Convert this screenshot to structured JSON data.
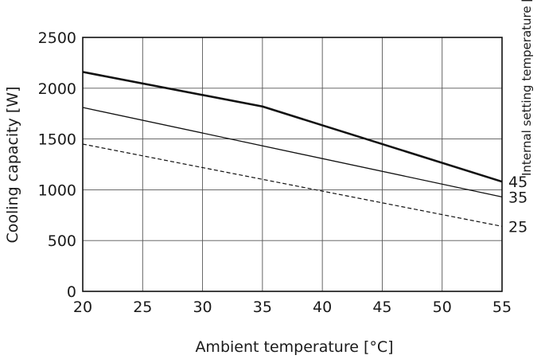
{
  "chart_data": {
    "type": "line",
    "title": "",
    "xlabel": "Ambient temperature [°C]",
    "ylabel": "Cooling capacity [W]",
    "legend_title": "Internal setting temperature [°C]",
    "legend_placement": "right, labels at line ends",
    "xlim": [
      20,
      55
    ],
    "ylim": [
      0,
      2500
    ],
    "x_ticks": [
      "20",
      "25",
      "30",
      "35",
      "40",
      "45",
      "50",
      "55"
    ],
    "y_ticks": [
      "0",
      "500",
      "1000",
      "1500",
      "2000",
      "2500"
    ],
    "grid": true,
    "series": [
      {
        "name": "45",
        "style": "thick-solid",
        "x": [
          20,
          35,
          55
        ],
        "y": [
          2160,
          1820,
          1080
        ]
      },
      {
        "name": "35",
        "style": "solid",
        "x": [
          20,
          55
        ],
        "y": [
          1810,
          930
        ]
      },
      {
        "name": "25",
        "style": "dashed",
        "x": [
          20,
          55
        ],
        "y": [
          1450,
          640
        ]
      }
    ]
  }
}
